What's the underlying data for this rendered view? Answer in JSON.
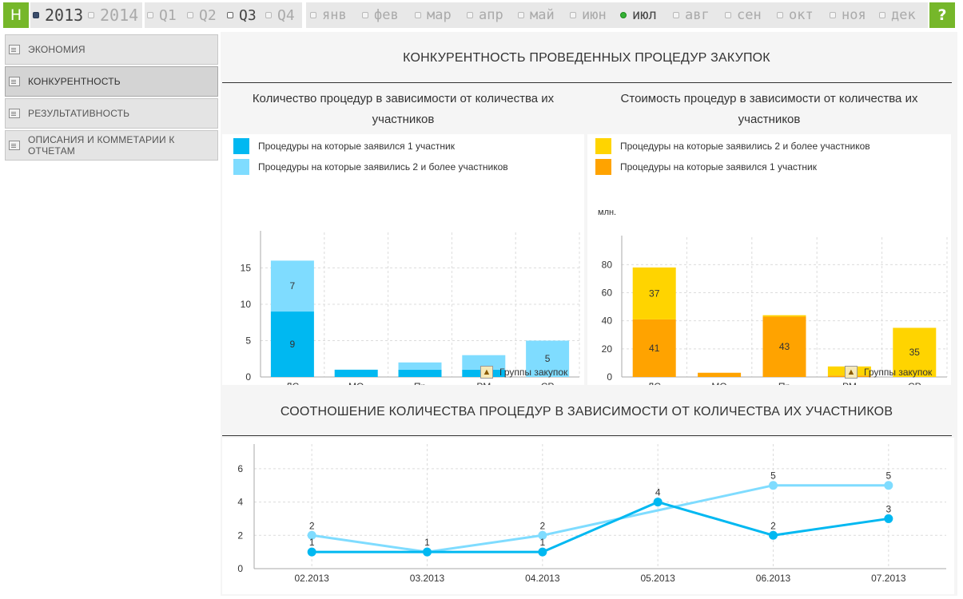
{
  "topbar": {
    "home_label": "Н",
    "help_label": "?",
    "years": [
      {
        "label": "2013",
        "state": "selected"
      },
      {
        "label": "2014",
        "state": "off"
      }
    ],
    "quarters": [
      {
        "label": "Q1",
        "state": "off"
      },
      {
        "label": "Q2",
        "state": "off"
      },
      {
        "label": "Q3",
        "state": "open"
      },
      {
        "label": "Q4",
        "state": "off"
      }
    ],
    "months": [
      {
        "label": "янв",
        "state": "off"
      },
      {
        "label": "фев",
        "state": "off"
      },
      {
        "label": "мар",
        "state": "off"
      },
      {
        "label": "апр",
        "state": "off"
      },
      {
        "label": "май",
        "state": "off"
      },
      {
        "label": "июн",
        "state": "off"
      },
      {
        "label": "июл",
        "state": "selected"
      },
      {
        "label": "авг",
        "state": "off"
      },
      {
        "label": "сен",
        "state": "off"
      },
      {
        "label": "окт",
        "state": "off"
      },
      {
        "label": "ноя",
        "state": "off"
      },
      {
        "label": "дек",
        "state": "off"
      }
    ]
  },
  "sidebar": {
    "items": [
      {
        "label": "ЭКОНОМИЯ",
        "active": false
      },
      {
        "label": "КОНКУРЕНТНОСТЬ",
        "active": true
      },
      {
        "label": "РЕЗУЛЬТАТИВНОСТЬ",
        "active": false
      },
      {
        "label": "ОПИСАНИЯ И КОММЕТАРИИ К ОТЧЕТАМ",
        "active": false
      }
    ]
  },
  "main": {
    "title": "КОНКУРЕНТНОСТЬ ПРОВЕДЕННЫХ ПРОЦЕДУР ЗАКУПОК",
    "left_panel": {
      "title_line1": "Количество процедур в зависимости от количества их",
      "title_line2": "участников",
      "legend": [
        {
          "label": "Процедуры на которые заявился 1 участник",
          "color": "#00b8f1"
        },
        {
          "label": "Процедуры на которые заявились 2 и более участников",
          "color": "#7fdcff"
        }
      ],
      "axis_note": "Группы закупок"
    },
    "right_panel": {
      "title_line1": "Стоимость процедур в зависимости от количества их",
      "title_line2": "участников",
      "legend": [
        {
          "label": "Процедуры на которые заявились 2 и более участников",
          "color": "#ffd400"
        },
        {
          "label": "Процедуры на которые заявился 1 участник",
          "color": "#ffa300"
        }
      ],
      "axis_note": "Группы закупок"
    },
    "bottom_title": "СООТНОШЕНИЕ КОЛИЧЕСТВА ПРОЦЕДУР В ЗАВИСИМОСТИ ОТ КОЛИЧЕСТВА ИХ УЧАСТНИКОВ"
  },
  "chart_data": [
    {
      "type": "bar",
      "stacked": true,
      "title": "Количество процедур в зависимости от количества их участников",
      "categories": [
        "ЛС",
        "МО",
        "Пр",
        "РМ",
        "СР"
      ],
      "series": [
        {
          "name": "Процедуры на которые заявился 1 участник",
          "color": "#00b8f1",
          "values": [
            9,
            1,
            1,
            1,
            0
          ]
        },
        {
          "name": "Процедуры на которые заявились 2 и более участников",
          "color": "#7fdcff",
          "values": [
            7,
            0,
            1,
            2,
            5
          ]
        }
      ],
      "data_labels": [
        {
          "category": "ЛС",
          "series": 0,
          "text": "9"
        },
        {
          "category": "ЛС",
          "series": 1,
          "text": "7"
        },
        {
          "category": "СР",
          "series": 1,
          "text": "5"
        }
      ],
      "yticks": [
        0,
        5,
        10,
        15
      ],
      "ylim": [
        0,
        19
      ],
      "grid": true,
      "xlabel": "Группы закупок"
    },
    {
      "type": "bar",
      "stacked": true,
      "title": "Стоимость процедур в зависимости от количества их участников",
      "ylabel": "млн.",
      "categories": [
        "ЛС",
        "МО",
        "Пр",
        "РМ",
        "СР"
      ],
      "series": [
        {
          "name": "Процедуры на которые заявился 1 участник",
          "color": "#ffa300",
          "values": [
            41,
            3,
            43,
            1,
            0
          ]
        },
        {
          "name": "Процедуры на которые заявились 2 и более участников",
          "color": "#ffd400",
          "values": [
            37,
            0,
            1,
            6.5,
            35
          ]
        }
      ],
      "data_labels": [
        {
          "category": "ЛС",
          "series": 0,
          "text": "41"
        },
        {
          "category": "ЛС",
          "series": 1,
          "text": "37"
        },
        {
          "category": "Пр",
          "series": 0,
          "text": "43"
        },
        {
          "category": "СР",
          "series": 1,
          "text": "35"
        }
      ],
      "yticks": [
        0,
        20,
        40,
        60,
        80
      ],
      "ylim": [
        0,
        95
      ],
      "grid": true,
      "xlabel": "Группы закупок"
    },
    {
      "type": "line",
      "title": "СООТНОШЕНИЕ КОЛИЧЕСТВА ПРОЦЕДУР В ЗАВИСИМОСТИ ОТ КОЛИЧЕСТВА ИХ УЧАСТНИКОВ",
      "x": [
        "02.2013",
        "03.2013",
        "04.2013",
        "05.2013",
        "06.2013",
        "07.2013"
      ],
      "series": [
        {
          "color": "#7fdcff",
          "values": [
            2,
            1,
            2,
            3.5,
            5,
            5
          ],
          "labels": [
            "2",
            "1",
            "2",
            "",
            "5",
            "5"
          ]
        },
        {
          "color": "#00b8f1",
          "values": [
            1,
            1,
            1,
            4,
            2,
            3
          ],
          "labels": [
            "1",
            "",
            "1",
            "4",
            "2",
            "3"
          ]
        }
      ],
      "yticks": [
        0,
        2,
        4,
        6
      ],
      "ylim": [
        0,
        7
      ],
      "grid": true
    }
  ]
}
